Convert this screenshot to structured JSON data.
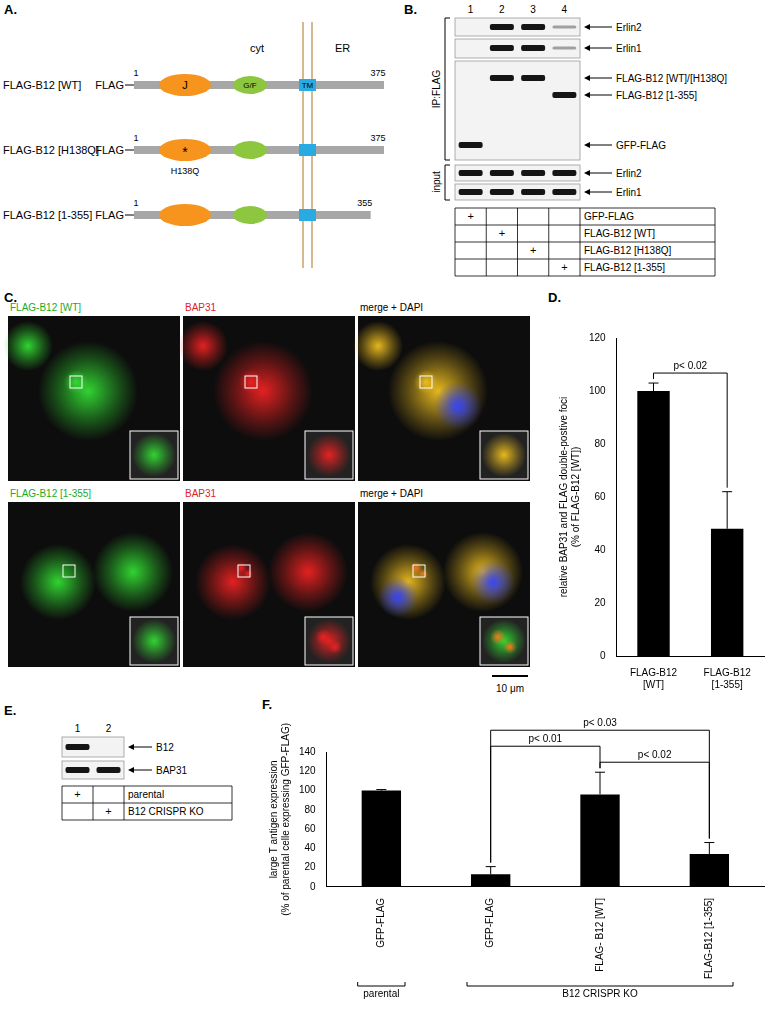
{
  "panel_labels": [
    "A.",
    "B.",
    "C.",
    "D.",
    "E.",
    "F."
  ],
  "mark": "+",
  "panel_A": {
    "regions": [
      "cyt",
      "ER"
    ],
    "domains": [
      "J",
      "G/F",
      "TM"
    ],
    "start": 1,
    "constructs": [
      {
        "name": "FLAG-B12 [WT]",
        "tag": "FLAG",
        "end": 375
      },
      {
        "name": "FLAG-B12 [H138Q]",
        "tag": "FLAG",
        "end": 375,
        "mutation": "H138Q",
        "mutation_mark": "*"
      },
      {
        "name": "FLAG-B12 [1-355]",
        "tag": "FLAG",
        "end": 355
      }
    ]
  },
  "panel_B": {
    "lanes": [
      1,
      2,
      3,
      4
    ],
    "ip_label": "IP:FLAG",
    "input_label": "input",
    "ip_bands": [
      "Erlin2",
      "Erlin1",
      "FLAG-B12 [WT]/[H138Q]",
      "FLAG-B12 [1-355]",
      "GFP-FLAG"
    ],
    "input_bands": [
      "Erlin2",
      "Erlin1"
    ],
    "conditions": [
      {
        "label": "GFP-FLAG",
        "lane": 1
      },
      {
        "label": "FLAG-B12 [WT]",
        "lane": 2
      },
      {
        "label": "FLAG-B12 [H138Q]",
        "lane": 3
      },
      {
        "label": "FLAG-B12 [1-355]",
        "lane": 4
      }
    ]
  },
  "panel_C": {
    "rows": [
      {
        "construct": "FLAG-B12 [WT]",
        "stain": "BAP31",
        "merge": "merge + DAPI"
      },
      {
        "construct": "FLAG-B12 [1-355]",
        "stain": "BAP31",
        "merge": "merge + DAPI"
      }
    ],
    "scale_bar": "10 μm"
  },
  "panel_E": {
    "lanes": [
      1,
      2
    ],
    "blots": [
      "B12",
      "BAP31"
    ],
    "conditions": [
      {
        "label": "parental",
        "lane": 1
      },
      {
        "label": "B12 CRISPR KO",
        "lane": 2
      }
    ]
  },
  "chart_data": [
    {
      "type": "bar",
      "categories": [
        "FLAG-B12 [WT]",
        "FLAG-B12 [1-355]"
      ],
      "values": [
        100,
        48
      ],
      "errors": [
        3,
        14
      ],
      "color": "#000000",
      "y_label": [
        "relative BAP31 and FLAG double-postive foci",
        "(% of FLAG-B12 [WT])"
      ],
      "ylim": [
        0,
        120
      ],
      "yticks": [
        0,
        20,
        40,
        60,
        80,
        100,
        120
      ],
      "grid": false,
      "comparisons": [
        {
          "label": "p< 0.02",
          "between": [
            0,
            1
          ]
        }
      ]
    },
    {
      "type": "bar",
      "categories": [
        "GFP-FLAG",
        "GFP-FLAG",
        "FLAG- B12 [WT]",
        "FLAG-B12 [1-355]"
      ],
      "values": [
        100,
        13,
        96,
        34
      ],
      "errors": [
        1,
        8,
        23,
        12
      ],
      "color": "#000000",
      "y_label": [
        "large T antigen expression",
        "(% of parental celle expressing GFP-FLAG)"
      ],
      "ylim": [
        0,
        140
      ],
      "yticks": [
        0,
        20,
        40,
        60,
        80,
        100,
        120,
        140
      ],
      "grid": false,
      "groups": [
        {
          "label": "parental",
          "between": [
            0,
            0
          ]
        },
        {
          "label": "B12 CRISPR KO",
          "between": [
            1,
            3
          ]
        }
      ],
      "comparisons": [
        {
          "label": "p< 0.02",
          "between": [
            2,
            3
          ]
        },
        {
          "label": "p< 0.01",
          "between": [
            1,
            2
          ]
        },
        {
          "label": "p< 0.03",
          "between": [
            1,
            3
          ]
        }
      ]
    }
  ]
}
